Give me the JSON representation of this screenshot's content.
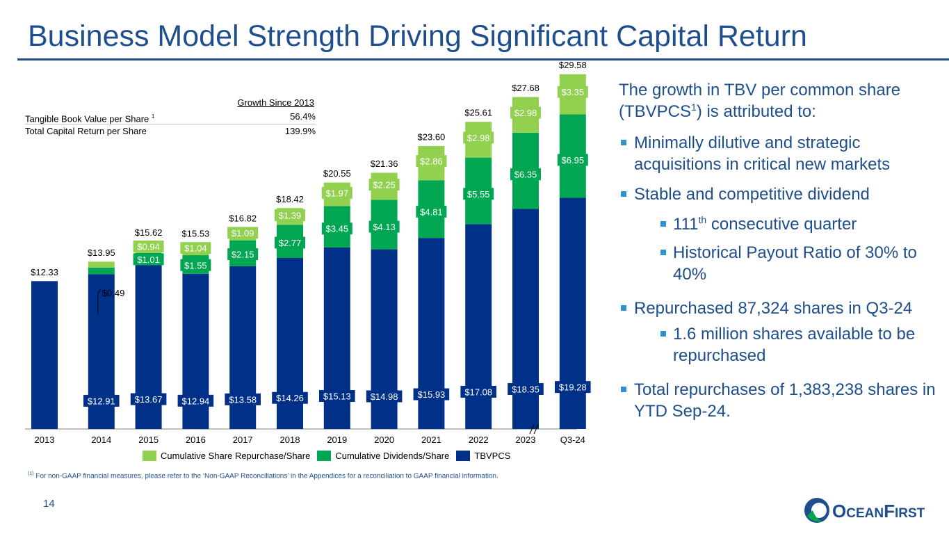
{
  "title": "Business Model Strength Driving Significant Capital Return",
  "growth_table": {
    "header": "Growth Since 2013",
    "rows": [
      {
        "label": "Tangible Book Value per Share",
        "sup": "1",
        "value": "56.4%"
      },
      {
        "label": "Total Capital Return per Share",
        "sup": "",
        "value": "139.9%"
      }
    ]
  },
  "chart_data": {
    "type": "bar",
    "stacked": true,
    "categories": [
      "2013",
      "2014",
      "2015",
      "2016",
      "2017",
      "2018",
      "2019",
      "2020",
      "2021",
      "2022",
      "2023",
      "Q3-24"
    ],
    "series": [
      {
        "name": "TBVPCS",
        "color": "#003087",
        "values": [
          12.33,
          12.91,
          13.67,
          12.94,
          13.58,
          14.26,
          15.13,
          14.98,
          15.93,
          17.08,
          18.35,
          19.28
        ],
        "labels": [
          null,
          "$12.91",
          "$13.67",
          "$12.94",
          "$13.58",
          "$14.26",
          "$15.13",
          "$14.98",
          "$15.93",
          "$17.08",
          "$18.35",
          "$19.28"
        ]
      },
      {
        "name": "Cumulative Dividends/Share",
        "color": "#00a651",
        "values": [
          0,
          0.55,
          1.01,
          1.55,
          2.15,
          2.77,
          3.45,
          4.13,
          4.81,
          5.55,
          6.35,
          6.95
        ],
        "labels": [
          null,
          null,
          "$1.01",
          "$1.55",
          "$2.15",
          "$2.77",
          "$3.45",
          "$4.13",
          "$4.81",
          "$5.55",
          "$6.35",
          "$6.95"
        ]
      },
      {
        "name": "Cumulative Share Repurchase/Share",
        "color": "#92d050",
        "values": [
          0,
          0.49,
          0.94,
          1.04,
          1.09,
          1.39,
          1.97,
          2.25,
          2.86,
          2.98,
          2.98,
          3.35
        ],
        "labels": [
          null,
          null,
          "$0.94",
          "$1.04",
          "$1.09",
          "$1.39",
          "$1.97",
          "$2.25",
          "$2.86",
          "$2.98",
          "$2.98",
          "$3.35"
        ]
      }
    ],
    "totals": [
      "$12.33",
      "$13.95",
      "$15.62",
      "$15.53",
      "$16.82",
      "$18.42",
      "$20.55",
      "$21.36",
      "$23.60",
      "$25.61",
      "$27.68",
      "$29.58"
    ],
    "callout": {
      "category": "2014",
      "text": "$0.49"
    },
    "ylim": [
      0,
      30
    ],
    "legend_order": [
      "Cumulative Share Repurchase/Share",
      "Cumulative Dividends/Share",
      "TBVPCS"
    ]
  },
  "legend": {
    "repurchase": "Cumulative Share Repurchase/Share",
    "dividends": "Cumulative Dividends/Share",
    "tbvpcs": "TBVPCS",
    "repurchase_color": "#92d050",
    "dividends_color": "#00a651",
    "tbvpcs_color": "#003087"
  },
  "footnote": {
    "marker": "(1)",
    "text": " For non-GAAP financial measures, please refer to the ‘Non-GAAP Reconciliations’ in the Appendices for a reconciliation to GAAP financial information."
  },
  "page_number": "14",
  "panel": {
    "intro_a": "The growth in TBV per common share (TBVPCS",
    "intro_sup": "1",
    "intro_b": ") is attributed to:",
    "b1": "Minimally dilutive and strategic acquisitions in critical new markets",
    "b2": "Stable and competitive dividend",
    "b2_sub1_a": "111",
    "b2_sub1_sup": "th",
    "b2_sub1_b": " consecutive quarter",
    "b2_sub2": "Historical Payout Ratio of 30% to 40%",
    "b3": "Repurchased 87,324 shares in Q3-24",
    "b3_sub1": "1.6 million shares available to be repurchased",
    "b4": "Total repurchases of 1,383,238 shares in YTD Sep-24."
  },
  "logo": {
    "text_big": "O",
    "text_a": "CEAN",
    "text_b": "F",
    "text_c": "IRST",
    "accent": "#00a651",
    "brand": "#1f4e8c"
  }
}
